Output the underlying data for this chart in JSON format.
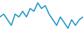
{
  "x": [
    0,
    1,
    2,
    3,
    4,
    5,
    6,
    7,
    8,
    9,
    10,
    11,
    12,
    13,
    14,
    15,
    16,
    17,
    18,
    19,
    20,
    21,
    22
  ],
  "y": [
    6,
    7,
    5,
    3,
    7,
    6,
    8,
    6,
    9,
    8,
    11,
    9,
    10,
    7,
    5,
    3,
    6,
    4,
    2,
    5,
    3,
    5,
    6
  ],
  "line_color": "#1a96c8",
  "linewidth": 1.2,
  "background_color": "#ffffff",
  "ylim": [
    1,
    12
  ],
  "xlim": [
    0,
    22
  ]
}
